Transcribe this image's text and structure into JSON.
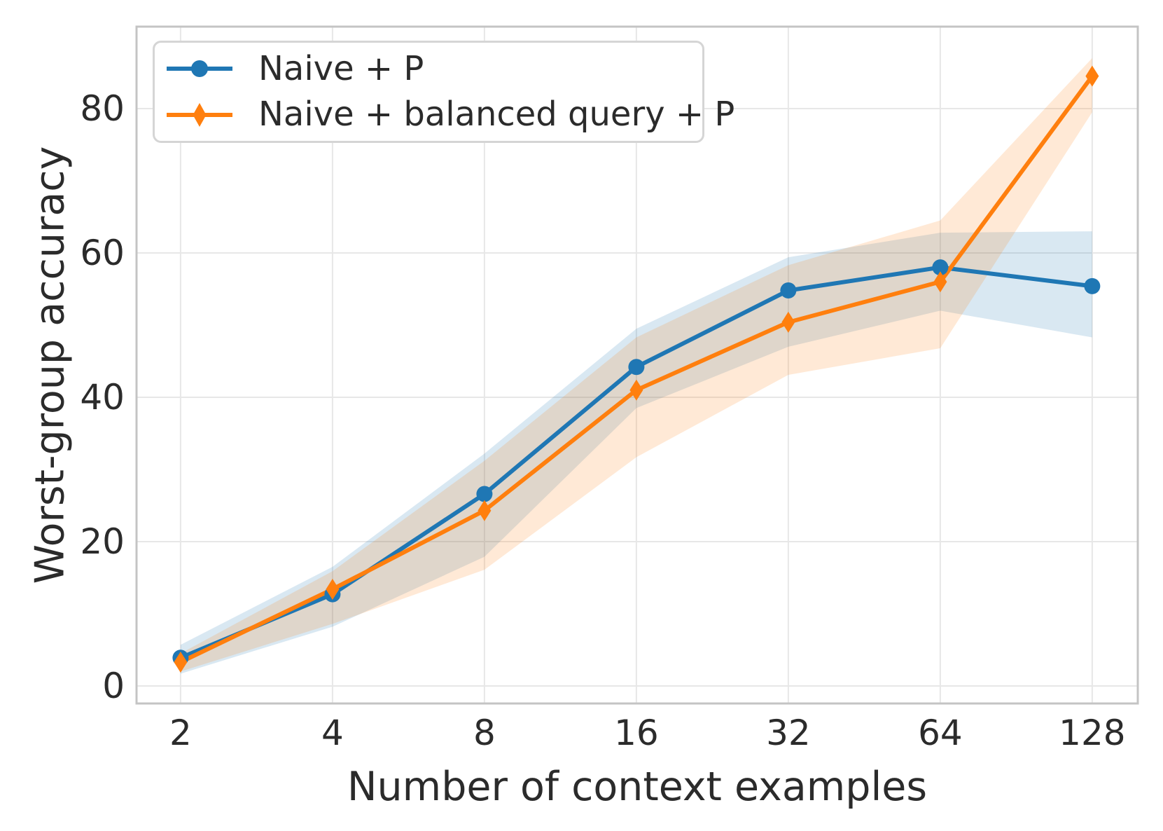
{
  "chart_data": {
    "type": "line",
    "title": "",
    "xlabel": "Number of context examples",
    "ylabel": "Worst-group accuracy",
    "x_scale": "log2",
    "x": [
      2,
      4,
      8,
      16,
      32,
      64,
      128
    ],
    "x_tick_labels": [
      "2",
      "4",
      "8",
      "16",
      "32",
      "64",
      "128"
    ],
    "y_ticks": [
      0,
      20,
      40,
      60,
      80
    ],
    "xlim": [
      1.636,
      157.6
    ],
    "ylim": [
      -2.43,
      91.36
    ],
    "grid": true,
    "legend_position": "upper left",
    "band_alpha": 0.17,
    "series": [
      {
        "name": "Naive + P",
        "color": "#1f77b4",
        "marker": "circle",
        "values": [
          3.9,
          12.7,
          26.6,
          44.2,
          54.8,
          58.0,
          55.4
        ],
        "band_upper": [
          5.7,
          16.5,
          32.2,
          49.5,
          59.4,
          62.8,
          63.0
        ],
        "band_lower": [
          1.7,
          8.2,
          17.9,
          38.5,
          47.0,
          52.0,
          48.3
        ]
      },
      {
        "name": "Naive + balanced query + P",
        "color": "#ff7f0e",
        "marker": "diamond",
        "values": [
          3.3,
          13.4,
          24.3,
          41.0,
          50.4,
          56.0,
          84.5
        ],
        "band_upper": [
          4.5,
          15.9,
          31.2,
          48.3,
          58.3,
          64.5,
          87.0
        ],
        "band_lower": [
          2.0,
          8.6,
          16.1,
          31.7,
          43.1,
          46.8,
          79.5
        ]
      }
    ],
    "colors": {
      "grid": "#e7e7e7",
      "spine": "#c4c4c4",
      "text": "#2b2b2b",
      "background": "#ffffff"
    }
  }
}
